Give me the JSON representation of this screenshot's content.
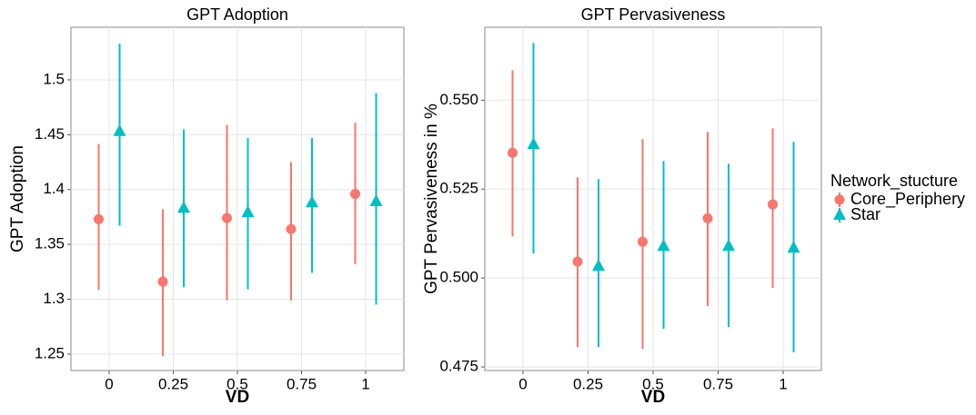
{
  "chart_data": [
    {
      "type": "errorbar",
      "title": "GPT Adoption",
      "x_label": "VD",
      "y_label": "GPT Adoption",
      "categories": [
        "0",
        "0.25",
        "0.5",
        "0.75",
        "1"
      ],
      "ylim": [
        1.235,
        1.548
      ],
      "yticks": [
        1.25,
        1.3,
        1.35,
        1.4,
        1.45,
        1.5
      ],
      "grid": true,
      "series": [
        {
          "color": "#f8766d",
          "marker": "circle",
          "values": [
            1.373,
            1.316,
            1.374,
            1.364,
            1.396
          ],
          "lower": [
            1.3085,
            1.248,
            1.299,
            1.299,
            1.332
          ],
          "upper": [
            1.4415,
            1.382,
            1.459,
            1.425,
            1.461
          ]
        },
        {
          "color": "#00bfc4",
          "marker": "triangle",
          "values": [
            1.453,
            1.383,
            1.379,
            1.388,
            1.389
          ],
          "lower": [
            1.367,
            1.311,
            1.309,
            1.324,
            1.295
          ],
          "upper": [
            1.533,
            1.455,
            1.447,
            1.447,
            1.488
          ]
        }
      ]
    },
    {
      "type": "errorbar",
      "title": "GPT Pervasiveness",
      "x_label": "VD",
      "y_label": "GPT Pervasiveness in %",
      "categories": [
        "0",
        "0.25",
        "0.5",
        "0.75",
        "1"
      ],
      "ylim": [
        0.474,
        0.5705
      ],
      "yticks": [
        0.475,
        {
          "value": 0.5,
          "label": "0.500"
        },
        0.525,
        {
          "value": 0.55,
          "label": "0.550"
        }
      ],
      "grid": true,
      "legend_title": "Network_stucture",
      "legend_position": "right",
      "series": [
        {
          "name": "Core_Periphery",
          "color": "#f8766d",
          "marker": "circle",
          "values": [
            0.5352,
            0.5046,
            0.5102,
            0.5168,
            0.5207
          ],
          "lower": [
            0.5117,
            0.4806,
            0.4801,
            0.4921,
            0.4972
          ],
          "upper": [
            0.5584,
            0.5283,
            0.539,
            0.5411,
            0.5421
          ]
        },
        {
          "name": "Star",
          "color": "#00bfc4",
          "marker": "triangle",
          "values": [
            0.5375,
            0.5033,
            0.5089,
            0.5089,
            0.5084
          ],
          "lower": [
            0.5069,
            0.4806,
            0.4857,
            0.4862,
            0.4791
          ],
          "upper": [
            0.5661,
            0.5278,
            0.5329,
            0.5321,
            0.5383
          ]
        }
      ]
    }
  ]
}
